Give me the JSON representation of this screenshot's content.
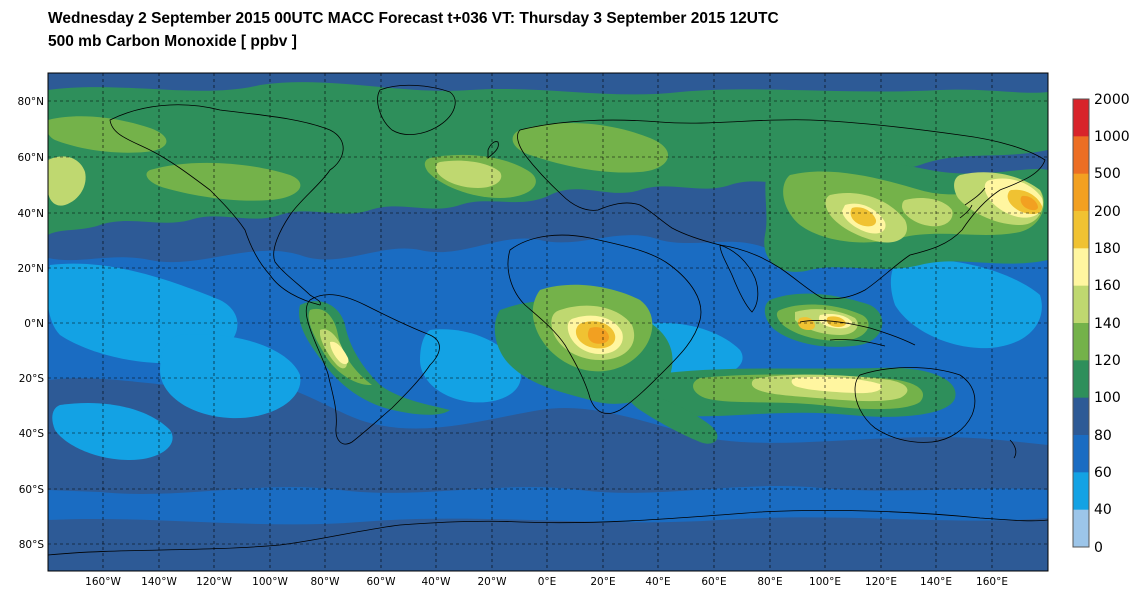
{
  "title": {
    "line1": "Wednesday 2 September 2015 00UTC MACC Forecast t+036 VT: Thursday 3 September 2015 12UTC",
    "line2": "500 mb Carbon Monoxide [ ppbv ]"
  },
  "lat_labels": [
    "80°N",
    "60°N",
    "40°N",
    "20°N",
    "0°N",
    "20°S",
    "40°S",
    "60°S",
    "80°S"
  ],
  "lon_labels": [
    "160°W",
    "140°W",
    "120°W",
    "100°W",
    "80°W",
    "60°W",
    "40°W",
    "20°W",
    "0°E",
    "20°E",
    "40°E",
    "60°E",
    "80°E",
    "100°E",
    "120°E",
    "140°E",
    "160°E"
  ],
  "colorbar": {
    "labels": [
      "2000",
      "1000",
      "500",
      "200",
      "180",
      "160",
      "140",
      "120",
      "100",
      "80",
      "60",
      "40",
      "0"
    ],
    "colors": [
      "#d8232a",
      "#ec6e23",
      "#f2a021",
      "#f0c232",
      "#fff6a0",
      "#bfd870",
      "#74b24a",
      "#2e8f5b",
      "#2d5a96",
      "#1a6cc2",
      "#13a2e4",
      "#9cc5e9"
    ]
  },
  "colors": {
    "ocean_base": "#1a6cc2",
    "band_40_60": "#13a2e4",
    "band_80_100": "#2d5a96",
    "band_100_120": "#2e8f5b",
    "band_120_140": "#74b24a",
    "band_140_160": "#bfd870",
    "band_160_180": "#fff6a0",
    "band_180_200": "#f0c232",
    "band_200_500": "#f2a021",
    "coastline": "#000000"
  }
}
